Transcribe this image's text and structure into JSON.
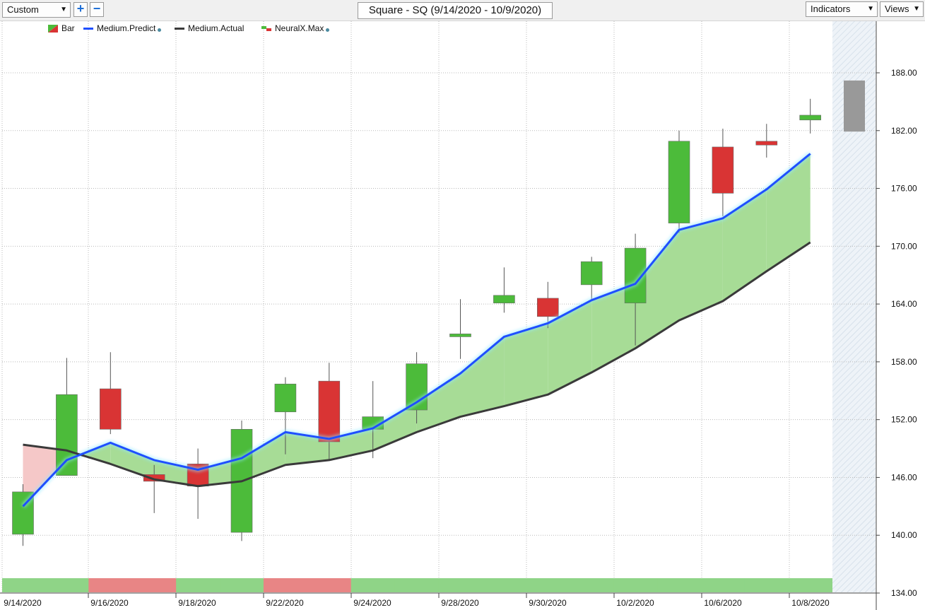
{
  "toolbar": {
    "range_select": "Custom",
    "zoom_in_label": "+",
    "zoom_out_label": "−",
    "title": "Square - SQ (9/14/2020 - 10/9/2020)",
    "indicators_label": "Indicators",
    "views_label": "Views"
  },
  "legend": [
    {
      "label": "Bar",
      "icon": "candle-icon"
    },
    {
      "label": "Medium.Predict",
      "icon": "blue-line-icon"
    },
    {
      "label": "Medium.Actual",
      "icon": "dark-line-icon"
    },
    {
      "label": "NeuralX.Max",
      "icon": "neural-bar-icon"
    }
  ],
  "colors": {
    "up": "#4cbb3a",
    "down": "#d93434",
    "predict": "#1f4fff",
    "actual": "#3a3a3a",
    "band_up": "#a7dc96",
    "band_down": "#f5c8c8",
    "forecast_bar": "#999999",
    "strip_green": "#8fd487",
    "strip_red": "#e88585"
  },
  "chart_data": {
    "type": "candlestick",
    "title": "Square - SQ (9/14/2020 - 10/9/2020)",
    "ylim": [
      134,
      194
    ],
    "yticks": [
      "188.00",
      "182.00",
      "176.00",
      "170.00",
      "164.00",
      "158.00",
      "152.00",
      "146.00",
      "140.00",
      "134.00"
    ],
    "x_tick_labels": [
      "9/14/2020",
      "9/16/2020",
      "9/18/2020",
      "9/22/2020",
      "9/24/2020",
      "9/28/2020",
      "9/30/2020",
      "10/2/2020",
      "10/6/2020",
      "10/8/2020"
    ],
    "dates": [
      "9/14/2020",
      "9/15/2020",
      "9/16/2020",
      "9/17/2020",
      "9/18/2020",
      "9/21/2020",
      "9/22/2020",
      "9/23/2020",
      "9/24/2020",
      "9/25/2020",
      "9/28/2020",
      "9/29/2020",
      "9/30/2020",
      "10/1/2020",
      "10/2/2020",
      "10/5/2020",
      "10/6/2020",
      "10/7/2020",
      "10/8/2020"
    ],
    "candles": [
      {
        "open": 140.1,
        "high": 145.3,
        "low": 138.9,
        "close": 144.5
      },
      {
        "open": 146.2,
        "high": 158.4,
        "low": 146.2,
        "close": 154.6
      },
      {
        "open": 155.2,
        "high": 159.0,
        "low": 150.5,
        "close": 151.0
      },
      {
        "open": 146.3,
        "high": 147.3,
        "low": 142.3,
        "close": 145.6
      },
      {
        "open": 147.4,
        "high": 149.0,
        "low": 141.7,
        "close": 145.1
      },
      {
        "open": 140.3,
        "high": 151.9,
        "low": 139.4,
        "close": 151.0
      },
      {
        "open": 152.8,
        "high": 156.4,
        "low": 148.4,
        "close": 155.7
      },
      {
        "open": 156.0,
        "high": 157.9,
        "low": 147.9,
        "close": 149.7
      },
      {
        "open": 151.0,
        "high": 156.0,
        "low": 148.0,
        "close": 152.3
      },
      {
        "open": 153.0,
        "high": 159.0,
        "low": 151.6,
        "close": 157.8
      },
      {
        "open": 160.6,
        "high": 164.5,
        "low": 158.3,
        "close": 160.9
      },
      {
        "open": 164.1,
        "high": 167.8,
        "low": 163.1,
        "close": 164.9
      },
      {
        "open": 164.6,
        "high": 166.3,
        "low": 161.5,
        "close": 162.7
      },
      {
        "open": 166.0,
        "high": 168.9,
        "low": 164.5,
        "close": 168.4
      },
      {
        "open": 164.1,
        "high": 171.3,
        "low": 159.7,
        "close": 169.8
      },
      {
        "open": 172.4,
        "high": 182.0,
        "low": 171.4,
        "close": 180.9
      },
      {
        "open": 180.3,
        "high": 182.2,
        "low": 173.1,
        "close": 175.5
      },
      {
        "open": 180.9,
        "high": 182.7,
        "low": 179.2,
        "close": 180.5
      },
      {
        "open": 183.1,
        "high": 185.3,
        "low": 181.7,
        "close": 183.6
      }
    ],
    "series": [
      {
        "name": "Medium.Predict",
        "values": [
          143.0,
          147.8,
          149.6,
          147.8,
          146.8,
          148.0,
          150.7,
          150.0,
          151.1,
          153.8,
          156.8,
          160.6,
          162.0,
          164.4,
          166.1,
          171.7,
          172.9,
          175.9,
          179.6
        ]
      },
      {
        "name": "Medium.Actual",
        "values": [
          149.4,
          148.8,
          147.4,
          145.8,
          145.1,
          145.6,
          147.3,
          147.8,
          148.8,
          150.7,
          152.3,
          153.4,
          154.6,
          156.9,
          159.4,
          162.3,
          164.3,
          167.4,
          170.4
        ]
      }
    ],
    "forecast_bar": {
      "low": 181.9,
      "high": 187.2
    },
    "signal_strip": [
      "green",
      "green",
      "red",
      "red",
      "green",
      "green",
      "red",
      "red",
      "green",
      "green",
      "green",
      "green",
      "green",
      "green",
      "green",
      "green",
      "green",
      "green",
      "green"
    ]
  }
}
